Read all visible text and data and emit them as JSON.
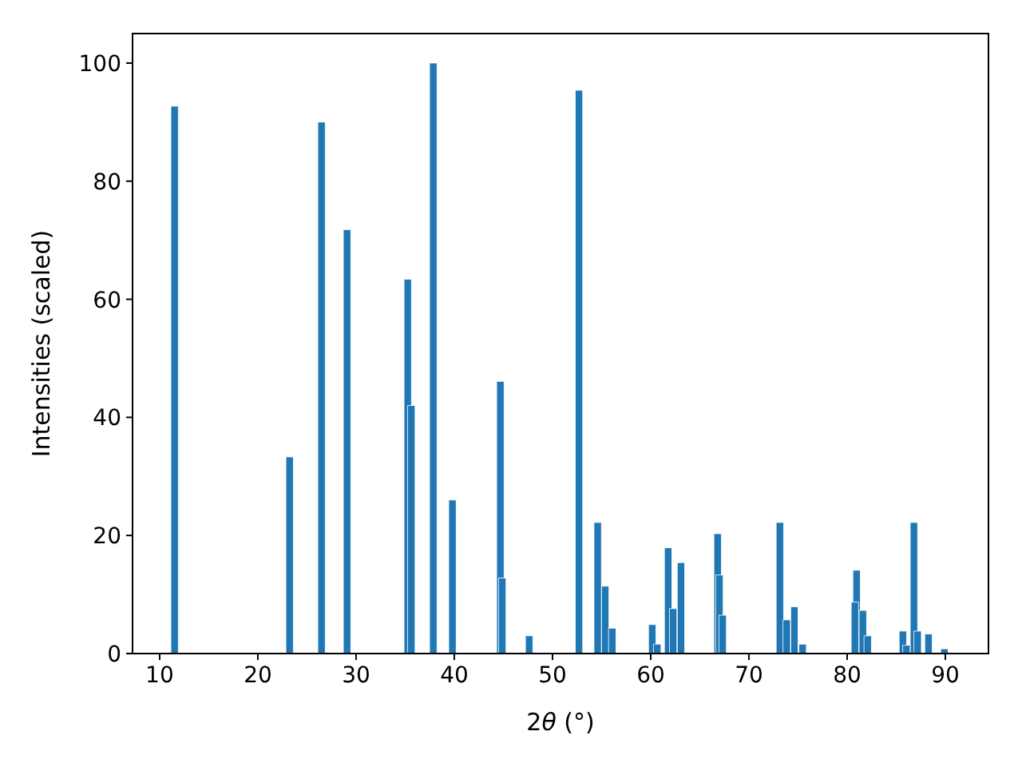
{
  "chart_data": {
    "type": "bar",
    "xlabel": "2θ (°)",
    "ylabel": "Intensities (scaled)",
    "x": [
      11.52,
      23.23,
      26.48,
      29.08,
      35.26,
      35.63,
      37.86,
      39.81,
      44.69,
      44.89,
      47.62,
      52.7,
      54.6,
      55.37,
      56.08,
      60.15,
      60.67,
      61.77,
      62.29,
      63.08,
      66.81,
      67.0,
      67.33,
      73.15,
      73.85,
      74.63,
      75.47,
      80.79,
      80.96,
      81.6,
      82.09,
      85.67,
      86.04,
      86.8,
      87.18,
      88.28,
      89.9
    ],
    "values": [
      92.7,
      33.3,
      90.0,
      71.8,
      63.4,
      42.0,
      100,
      26.0,
      46.1,
      12.8,
      3.0,
      95.4,
      22.2,
      11.4,
      4.3,
      4.9,
      1.6,
      17.9,
      7.6,
      15.4,
      20.3,
      13.3,
      6.5,
      22.2,
      5.7,
      7.9,
      1.6,
      8.7,
      14.1,
      7.3,
      3.0,
      3.8,
      1.4,
      22.2,
      3.8,
      3.3,
      0.8
    ],
    "color": "#1f77b4",
    "xlim": [
      7.24,
      94.39
    ],
    "xticks": [
      10,
      20,
      30,
      40,
      50,
      60,
      70,
      80,
      90
    ],
    "ylim": [
      0,
      105
    ],
    "yticks": [
      0,
      20,
      40,
      60,
      80,
      100
    ],
    "grid": false
  }
}
